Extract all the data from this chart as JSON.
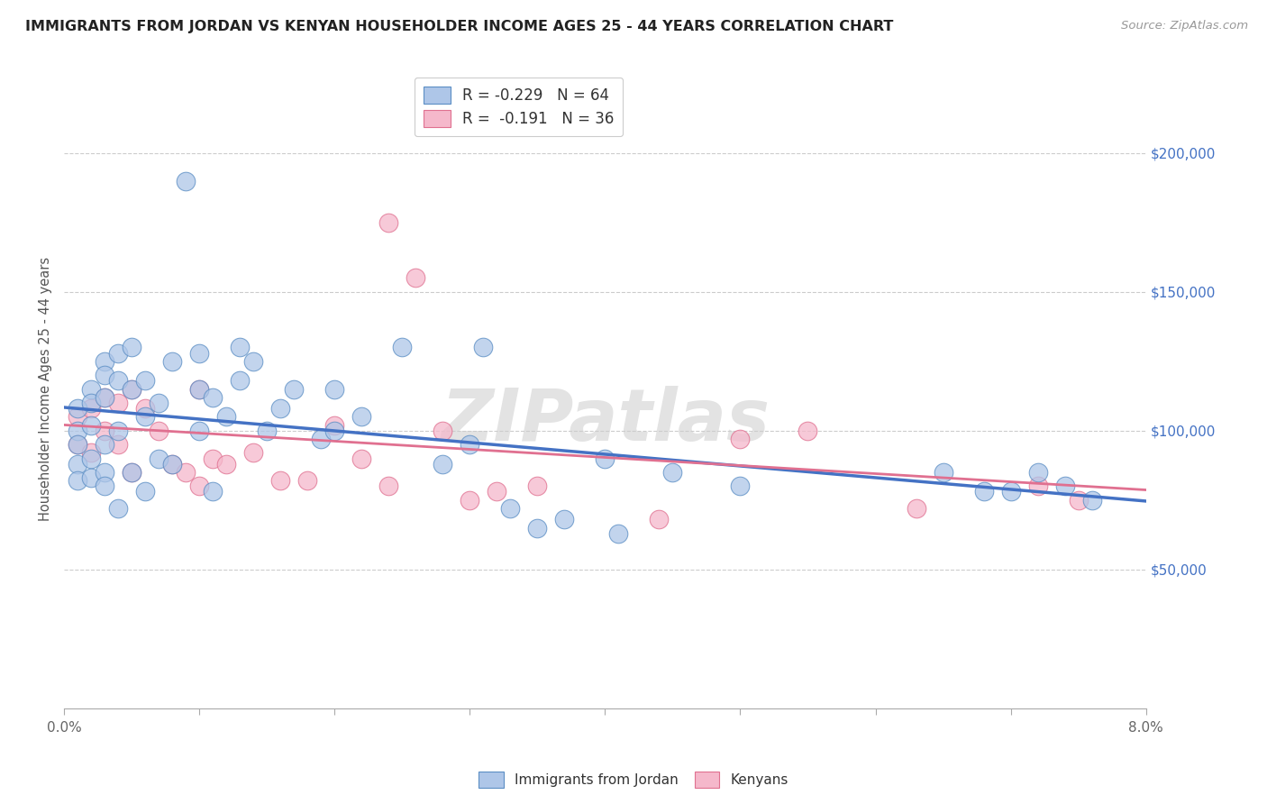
{
  "title": "IMMIGRANTS FROM JORDAN VS KENYAN HOUSEHOLDER INCOME AGES 25 - 44 YEARS CORRELATION CHART",
  "source": "Source: ZipAtlas.com",
  "ylabel": "Householder Income Ages 25 - 44 years",
  "xlim": [
    0.0,
    0.08
  ],
  "ylim": [
    0,
    230000
  ],
  "yticks": [
    0,
    50000,
    100000,
    150000,
    200000
  ],
  "ytick_labels": [
    "",
    "$50,000",
    "$100,000",
    "$150,000",
    "$200,000"
  ],
  "xticks": [
    0.0,
    0.01,
    0.02,
    0.03,
    0.04,
    0.05,
    0.06,
    0.07,
    0.08
  ],
  "xtick_labels": [
    "0.0%",
    "",
    "",
    "",
    "",
    "",
    "",
    "",
    "8.0%"
  ],
  "jordan_color": "#aec6e8",
  "jordan_edge_color": "#5b8ec4",
  "jordan_line_color": "#4472c4",
  "kenyan_color": "#f5b8cb",
  "kenyan_edge_color": "#e07090",
  "kenyan_line_color": "#e07090",
  "legend_text_jordan": "R = -0.229   N = 64",
  "legend_text_kenyan": "R =  -0.191   N = 36",
  "legend_label_jordan": "Immigrants from Jordan",
  "legend_label_kenyan": "Kenyans",
  "watermark": "ZIPatlas",
  "jordan_x": [
    0.001,
    0.001,
    0.001,
    0.001,
    0.001,
    0.002,
    0.002,
    0.002,
    0.002,
    0.002,
    0.003,
    0.003,
    0.003,
    0.003,
    0.003,
    0.003,
    0.004,
    0.004,
    0.004,
    0.004,
    0.005,
    0.005,
    0.005,
    0.006,
    0.006,
    0.006,
    0.007,
    0.007,
    0.008,
    0.008,
    0.009,
    0.01,
    0.01,
    0.01,
    0.011,
    0.011,
    0.012,
    0.013,
    0.013,
    0.014,
    0.015,
    0.016,
    0.017,
    0.019,
    0.02,
    0.02,
    0.022,
    0.025,
    0.028,
    0.03,
    0.031,
    0.033,
    0.035,
    0.037,
    0.04,
    0.041,
    0.045,
    0.05,
    0.065,
    0.068,
    0.07,
    0.072,
    0.074,
    0.076
  ],
  "jordan_y": [
    108000,
    100000,
    95000,
    88000,
    82000,
    115000,
    110000,
    102000,
    90000,
    83000,
    125000,
    120000,
    112000,
    95000,
    85000,
    80000,
    128000,
    118000,
    100000,
    72000,
    130000,
    115000,
    85000,
    118000,
    105000,
    78000,
    110000,
    90000,
    125000,
    88000,
    190000,
    128000,
    115000,
    100000,
    112000,
    78000,
    105000,
    130000,
    118000,
    125000,
    100000,
    108000,
    115000,
    97000,
    115000,
    100000,
    105000,
    130000,
    88000,
    95000,
    130000,
    72000,
    65000,
    68000,
    90000,
    63000,
    85000,
    80000,
    85000,
    78000,
    78000,
    85000,
    80000,
    75000
  ],
  "kenyan_x": [
    0.001,
    0.001,
    0.002,
    0.002,
    0.003,
    0.003,
    0.004,
    0.004,
    0.005,
    0.005,
    0.006,
    0.007,
    0.008,
    0.009,
    0.01,
    0.01,
    0.011,
    0.012,
    0.014,
    0.016,
    0.018,
    0.02,
    0.022,
    0.024,
    0.024,
    0.026,
    0.028,
    0.03,
    0.032,
    0.035,
    0.044,
    0.05,
    0.055,
    0.063,
    0.072,
    0.075
  ],
  "kenyan_y": [
    105000,
    95000,
    108000,
    92000,
    112000,
    100000,
    110000,
    95000,
    115000,
    85000,
    108000,
    100000,
    88000,
    85000,
    115000,
    80000,
    90000,
    88000,
    92000,
    82000,
    82000,
    102000,
    90000,
    175000,
    80000,
    155000,
    100000,
    75000,
    78000,
    80000,
    68000,
    97000,
    100000,
    72000,
    80000,
    75000
  ]
}
